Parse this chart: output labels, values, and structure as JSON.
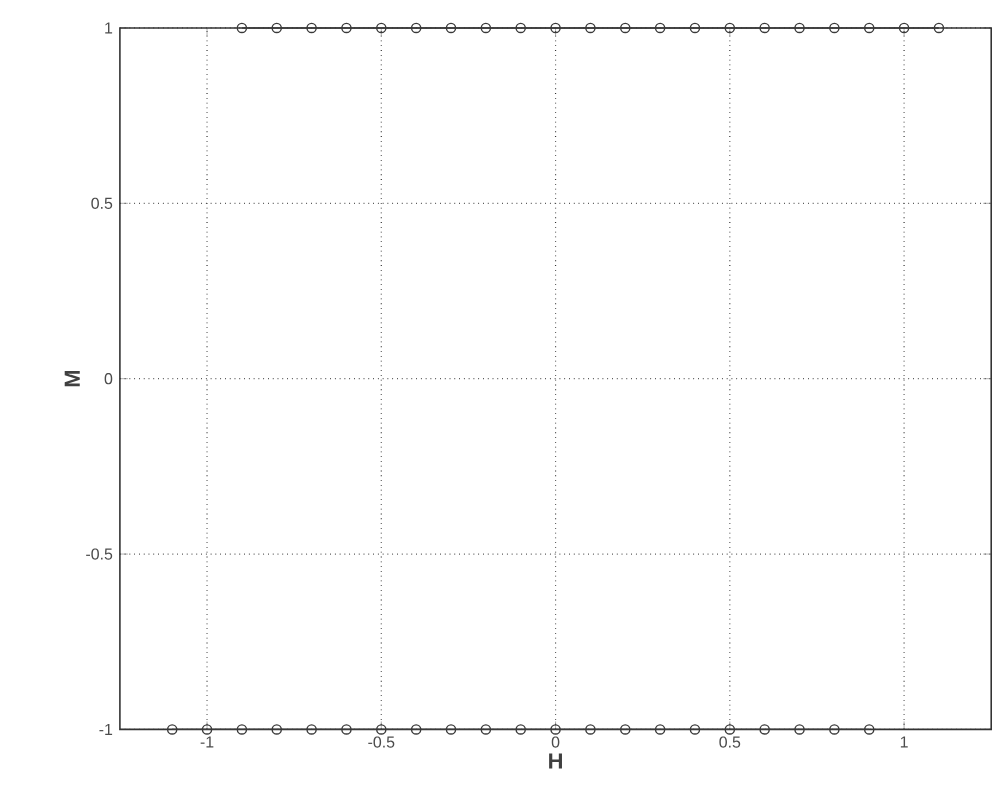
{
  "chart_data": {
    "type": "line",
    "xlabel": "H",
    "ylabel": "M",
    "xlim": [
      -1.25,
      1.25
    ],
    "ylim": [
      -1,
      1
    ],
    "xticks": [
      -1,
      -0.5,
      0,
      0.5,
      1
    ],
    "yticks": [
      -1,
      -0.5,
      0,
      0.5,
      1
    ],
    "grid": true,
    "marker": "circle",
    "line_style": "solid",
    "series": [
      {
        "color": "#3a3a3a",
        "x": [
          -0.9,
          -0.8,
          -0.7,
          -0.6,
          -0.5,
          -0.4,
          -0.3,
          -0.2,
          -0.1,
          0,
          0.1,
          0.2,
          0.3,
          0.4,
          0.5,
          0.6,
          0.7,
          0.8,
          0.9,
          1.0,
          1.1
        ],
        "values": [
          1,
          1,
          1,
          1,
          1,
          1,
          1,
          1,
          1,
          1,
          1,
          1,
          1,
          1,
          1,
          1,
          1,
          1,
          1,
          1,
          1
        ]
      },
      {
        "color": "#3a3a3a",
        "x": [
          -1.1,
          -1.0,
          -0.9,
          -0.8,
          -0.7,
          -0.6,
          -0.5,
          -0.4,
          -0.3,
          -0.2,
          -0.1,
          0,
          0.1,
          0.2,
          0.3,
          0.4,
          0.5,
          0.6,
          0.7,
          0.8,
          0.9
        ],
        "values": [
          -1,
          -1,
          -1,
          -1,
          -1,
          -1,
          -1,
          -1,
          -1,
          -1,
          -1,
          -1,
          -1,
          -1,
          -1,
          -1,
          -1,
          -1,
          -1,
          -1,
          -1
        ]
      }
    ]
  }
}
